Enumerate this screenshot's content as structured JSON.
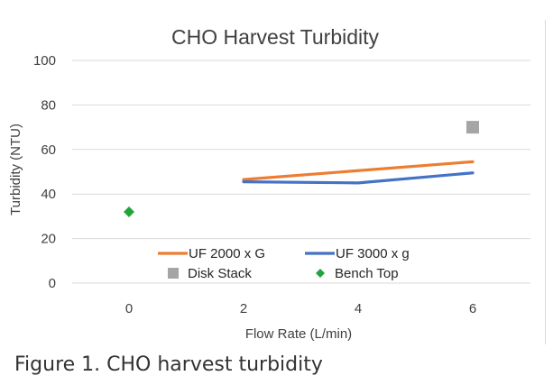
{
  "chart_data": {
    "type": "line",
    "title": "CHO Harvest Turbidity",
    "xlabel": "Flow Rate (L/min)",
    "ylabel": "Turbidity (NTU)",
    "x_categories": [
      "0",
      "2",
      "4",
      "6"
    ],
    "x_positions": [
      0,
      2,
      4,
      6
    ],
    "ylim": [
      0,
      100
    ],
    "yticks": [
      0,
      20,
      40,
      60,
      80,
      100
    ],
    "grid": true,
    "legend_position": "bottom-inside",
    "series": [
      {
        "name": "UF 2000 x G",
        "kind": "line",
        "color": "#ED7D31",
        "x": [
          2,
          4,
          6
        ],
        "y": [
          46.5,
          50.5,
          54.5
        ]
      },
      {
        "name": "UF 3000 x g",
        "kind": "line",
        "color": "#4472C4",
        "x": [
          2,
          4,
          6
        ],
        "y": [
          45.5,
          45,
          49.5
        ]
      },
      {
        "name": "Disk Stack",
        "kind": "scatter",
        "marker": "square",
        "color": "#A5A5A5",
        "x": [
          6
        ],
        "y": [
          70
        ]
      },
      {
        "name": "Bench Top",
        "kind": "scatter",
        "marker": "diamond",
        "color": "#22A33D",
        "x": [
          0
        ],
        "y": [
          32
        ]
      }
    ]
  },
  "caption": "Figure 1. CHO harvest turbidity"
}
